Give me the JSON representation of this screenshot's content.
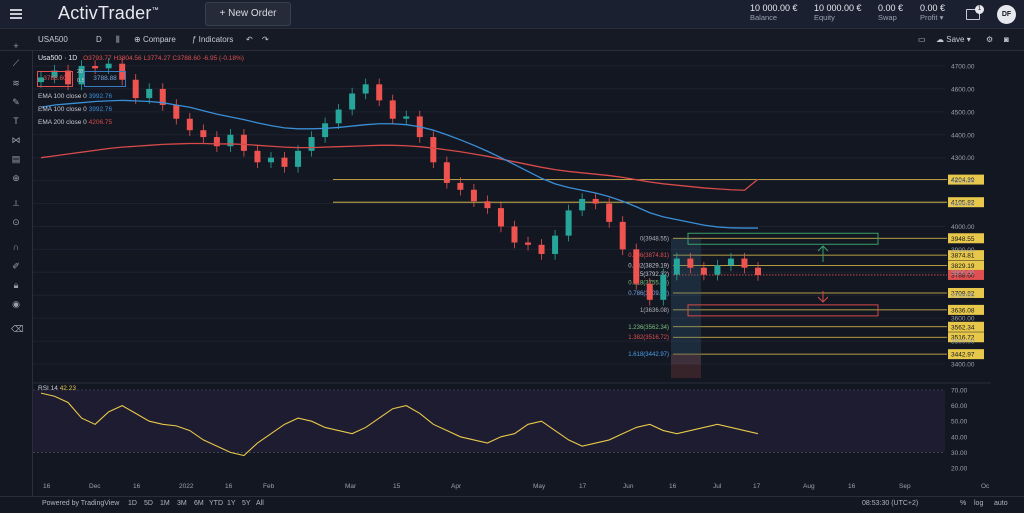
{
  "header": {
    "logo": "ActivTrader",
    "logo_mark": "™",
    "new_order": "New Order",
    "stats": [
      {
        "value": "10 000.00 €",
        "label": "Balance"
      },
      {
        "value": "10 000.00 €",
        "label": "Equity"
      },
      {
        "value": "0.00 €",
        "label": "Swap"
      },
      {
        "value": "0.00 €",
        "label": "Profit"
      }
    ],
    "messages_count": "1",
    "user_initials": "DF"
  },
  "toolbar": {
    "symbol": "USA500",
    "interval": "D",
    "compare": "Compare",
    "indicators": "Indicators",
    "save": "Save"
  },
  "legend": {
    "title": "Usa500 · 1D",
    "ohlc": "O3793.77 H3804.56 L3774.27 C3788.60 -6.95 (-0.18%)",
    "price_sell": "3788.60",
    "price_buy": "3788.88",
    "spread_top": "28",
    "spread_bottom": "0.5",
    "ema_lines": [
      {
        "label": "EMA 100 close 0",
        "value": "3992.76"
      },
      {
        "label": "EMA 100 close 0",
        "value": "3992.76"
      },
      {
        "label": "EMA 200 close 0",
        "value": "4206.75"
      }
    ]
  },
  "price_axis": [
    "4700.00",
    "4600.00",
    "4500.00",
    "4400.00",
    "4300.00",
    "4200.00",
    "4100.00",
    "4000.00",
    "3900.00",
    "3800.00",
    "3700.00",
    "3600.00",
    "3500.00",
    "3400.00"
  ],
  "level_labels": [
    {
      "text": "4204.39",
      "price": 4204.39,
      "color": "#e8c84a"
    },
    {
      "text": "4105.82",
      "price": 4105.82,
      "color": "#e8c84a"
    },
    {
      "text": "3948.55",
      "price": 3948.55,
      "color": "#e8c84a"
    },
    {
      "text": "3874.81",
      "price": 3874.81,
      "color": "#e8c84a"
    },
    {
      "text": "3829.19",
      "price": 3829.19,
      "color": "#e8c84a"
    },
    {
      "text": "3788.60",
      "price": 3788.6,
      "color": "#e05050"
    },
    {
      "text": "3709.82",
      "price": 3709.82,
      "color": "#e8c84a"
    },
    {
      "text": "3636.08",
      "price": 3636.08,
      "color": "#e8c84a"
    },
    {
      "text": "3562.34",
      "price": 3562.34,
      "color": "#e8c84a"
    },
    {
      "text": "3516.72",
      "price": 3516.72,
      "color": "#e8c84a"
    },
    {
      "text": "3442.97",
      "price": 3442.97,
      "color": "#e8c84a"
    }
  ],
  "fib_labels": [
    {
      "text": "0(3948.55)",
      "price": 3948.55,
      "color": "#b2b5be"
    },
    {
      "text": "0.236(3874.81)",
      "price": 3874.81,
      "color": "#e05050"
    },
    {
      "text": "0.382(3829.19)",
      "price": 3829.19,
      "color": "#c8cbd3"
    },
    {
      "text": "0.5(3792.32)",
      "price": 3792.32,
      "color": "#c8cbd3"
    },
    {
      "text": "0.618(3755.45)",
      "price": 3755.45,
      "color": "#7ac07a"
    },
    {
      "text": "0.786(3709.82)",
      "price": 3709.82,
      "color": "#7aa7e0"
    },
    {
      "text": "1(3636.08)",
      "price": 3636.08,
      "color": "#b2b5be"
    },
    {
      "text": "1.236(3562.34)",
      "price": 3562.34,
      "color": "#7ac07a"
    },
    {
      "text": "1.382(3516.72)",
      "price": 3516.72,
      "color": "#e05050"
    },
    {
      "text": "1.618(3442.97)",
      "price": 3442.97,
      "color": "#4aa0e8"
    }
  ],
  "rsi": {
    "label": "RSI 14",
    "value": "42.23",
    "axis": [
      "70.00",
      "60.00",
      "50.00",
      "40.00",
      "30.00",
      "20.00"
    ]
  },
  "time_axis": [
    "16",
    "Dec",
    "16",
    "2022",
    "16",
    "Feb",
    "Mar",
    "15",
    "Apr",
    "May",
    "17",
    "Jun",
    "16",
    "Jul",
    "17",
    "Aug",
    "16",
    "Sep",
    "Oc"
  ],
  "bottom": {
    "powered": "Powered by TradingView",
    "ranges": [
      "1D",
      "5D",
      "1M",
      "3M",
      "6M",
      "YTD",
      "1Y",
      "5Y",
      "All"
    ],
    "clock": "08:53:30 (UTC+2)",
    "pct": "%",
    "log": "log",
    "auto": "auto"
  },
  "chart_data": {
    "type": "candlestick",
    "series": [
      {
        "name": "EMA 100 close 0",
        "color": "#3a8fd6"
      },
      {
        "name": "EMA 200 close 0",
        "color": "#d64a4a"
      }
    ],
    "close": [
      4650,
      4680,
      4620,
      4700,
      4690,
      4710,
      4640,
      4560,
      4600,
      4530,
      4470,
      4420,
      4390,
      4350,
      4400,
      4330,
      4280,
      4300,
      4260,
      4330,
      4390,
      4450,
      4510,
      4580,
      4620,
      4550,
      4470,
      4480,
      4390,
      4280,
      4190,
      4160,
      4110,
      4080,
      4000,
      3930,
      3920,
      3880,
      3960,
      4070,
      4120,
      4100,
      4020,
      3900,
      3750,
      3680,
      3790,
      3860,
      3820,
      3790,
      3830,
      3860,
      3820,
      3788
    ],
    "ema100": [
      4520,
      4530,
      4535,
      4540,
      4545,
      4548,
      4550,
      4548,
      4545,
      4540,
      4530,
      4520,
      4505,
      4490,
      4478,
      4466,
      4452,
      4440,
      4430,
      4426,
      4426,
      4428,
      4432,
      4438,
      4444,
      4448,
      4448,
      4444,
      4435,
      4420,
      4400,
      4378,
      4354,
      4328,
      4300,
      4270,
      4240,
      4210,
      4186,
      4170,
      4158,
      4146,
      4130,
      4110,
      4086,
      4060,
      4042,
      4030,
      4018,
      4006,
      3998,
      3994,
      3993,
      3993
    ],
    "ema200": [
      4300,
      4308,
      4316,
      4324,
      4332,
      4340,
      4346,
      4350,
      4354,
      4358,
      4360,
      4362,
      4362,
      4360,
      4360,
      4358,
      4354,
      4350,
      4346,
      4344,
      4344,
      4346,
      4348,
      4350,
      4352,
      4354,
      4354,
      4352,
      4348,
      4342,
      4334,
      4326,
      4316,
      4306,
      4294,
      4282,
      4270,
      4258,
      4248,
      4240,
      4234,
      4228,
      4222,
      4214,
      4204,
      4194,
      4186,
      4180,
      4174,
      4168,
      4164,
      4160,
      4158,
      4206
    ],
    "rsi": [
      68,
      66,
      62,
      52,
      48,
      56,
      60,
      55,
      50,
      48,
      47,
      44,
      38,
      34,
      30,
      28,
      36,
      42,
      48,
      52,
      50,
      46,
      44,
      42,
      46,
      52,
      58,
      60,
      55,
      48,
      44,
      40,
      38,
      36,
      40,
      42,
      48,
      50,
      44,
      38,
      34,
      36,
      38,
      42,
      46,
      48,
      44,
      42,
      44,
      46,
      48,
      46,
      44,
      42
    ]
  }
}
